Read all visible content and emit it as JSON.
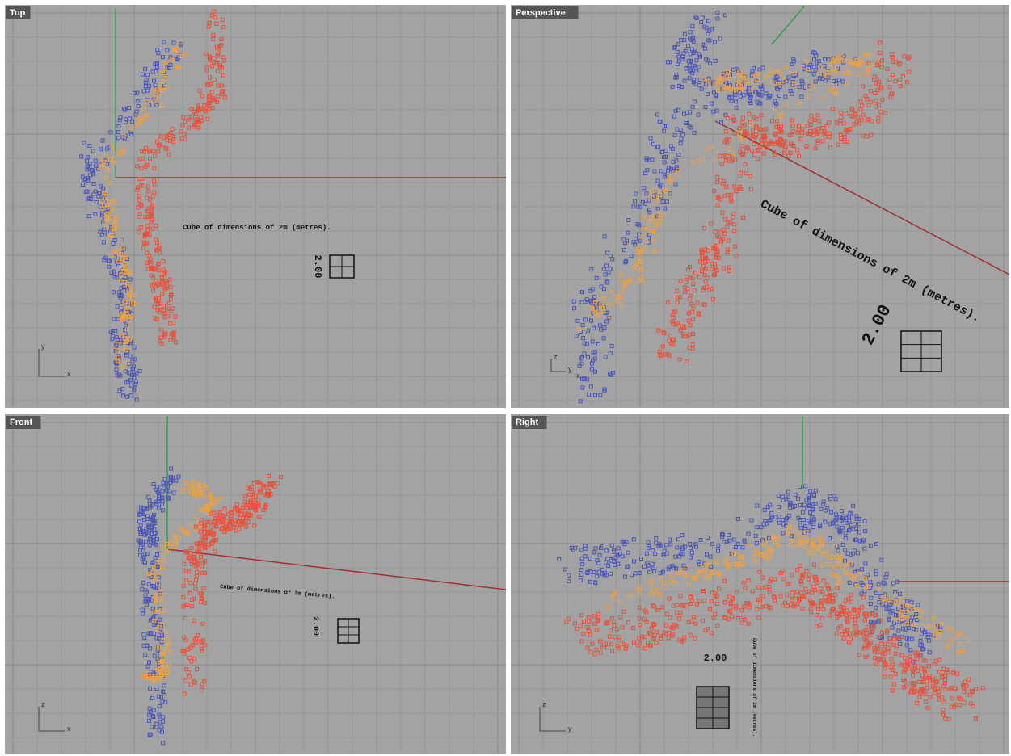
{
  "viewports": [
    {
      "label": "Top",
      "annotation": "Cube of dimensions of 2m (metres).",
      "dimension": "2.00",
      "axes": [
        "y",
        "x"
      ]
    },
    {
      "label": "Perspective",
      "annotation": "Cube of dimensions of 2m (metres).",
      "dimension": "2.00",
      "axes": [
        "z",
        "y",
        "x"
      ]
    },
    {
      "label": "Front",
      "annotation": "Cube of dimensions of 2m (metres).",
      "dimension": "2.00",
      "axes": [
        "z",
        "x"
      ]
    },
    {
      "label": "Right",
      "annotation": "Cube of dimensions of 2m (metres).",
      "dimension": "2.00",
      "axes": [
        "z",
        "y"
      ]
    }
  ]
}
